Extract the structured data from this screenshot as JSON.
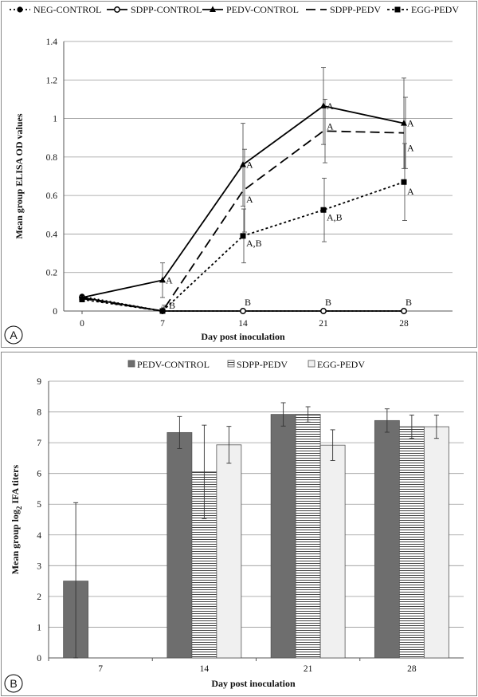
{
  "panels": [
    {
      "label": "A"
    },
    {
      "label": "B"
    }
  ],
  "colors": {
    "dark_bar": "#6e6e6e",
    "light_bar": "#f0f0f0",
    "grid": "#999999",
    "line": "#000000",
    "hatch": "#444444"
  },
  "chart_data": [
    {
      "type": "line",
      "panel": "A",
      "xlabel": "Day post inoculation",
      "ylabel": "Mean group ELISA OD values",
      "ylim": [
        0,
        1.4
      ],
      "yticks": [
        "0",
        "0.2",
        "0.4",
        "0.6",
        "0.8",
        "1",
        "1.2",
        "1.4"
      ],
      "x": [
        "0",
        "7",
        "14",
        "21",
        "28"
      ],
      "grid": true,
      "legend_position": "top",
      "series": [
        {
          "name": "NEG-CONTROL",
          "style": "dotted",
          "marker": "circle-filled",
          "values": [
            0.075,
            0.0,
            0.0,
            0.0,
            0.0
          ],
          "errors": [
            0,
            0,
            0,
            0,
            0
          ],
          "labels": [
            "",
            "B",
            "B",
            "B",
            "B"
          ]
        },
        {
          "name": "SDPP-CONTROL",
          "style": "solid",
          "marker": "circle-open",
          "values": [
            0.07,
            0.0,
            0.0,
            0.0,
            0.0
          ],
          "errors": [
            0,
            0,
            0,
            0,
            0
          ],
          "labels": [
            "",
            "",
            "",
            "",
            ""
          ]
        },
        {
          "name": "PEDV-CONTROL",
          "style": "solid",
          "marker": "triangle",
          "values": [
            0.07,
            0.16,
            0.76,
            1.065,
            0.975
          ],
          "errors": [
            0,
            0.09,
            0.215,
            0.2,
            0.235
          ],
          "labels": [
            "",
            "A",
            "A",
            "A",
            "A"
          ]
        },
        {
          "name": "SDPP-PEDV",
          "style": "dashed",
          "marker": "none",
          "values": [
            0.065,
            0.0,
            0.625,
            0.935,
            0.925
          ],
          "errors": [
            0,
            0.03,
            0.215,
            0.165,
            0.185
          ],
          "labels": [
            "",
            "",
            "A",
            "A",
            "A"
          ]
        },
        {
          "name": "EGG-PEDV",
          "style": "dotted-dense",
          "marker": "square",
          "values": [
            0.06,
            0.0,
            0.39,
            0.525,
            0.67
          ],
          "errors": [
            0,
            0.02,
            0.14,
            0.165,
            0.2
          ],
          "labels": [
            "",
            "",
            "A,B",
            "A,B",
            "A"
          ]
        }
      ]
    },
    {
      "type": "bar",
      "panel": "B",
      "xlabel": "Day post inoculation",
      "ylabel_main": "Mean group log",
      "ylabel_sub": "2",
      "ylabel_end": " IFA titers",
      "ylim": [
        0,
        9
      ],
      "yticks": [
        "0",
        "1",
        "2",
        "3",
        "4",
        "5",
        "6",
        "7",
        "8",
        "9"
      ],
      "categories": [
        "7",
        "14",
        "21",
        "28"
      ],
      "grid": true,
      "legend_position": "top",
      "series": [
        {
          "name": "PEDV-CONTROL",
          "fill": "dark",
          "values": [
            2.5,
            7.33,
            7.92,
            7.72
          ],
          "errors": [
            2.55,
            0.52,
            0.38,
            0.38
          ]
        },
        {
          "name": "SDPP-PEDV",
          "fill": "hatched",
          "values": [
            0,
            6.05,
            7.92,
            7.52
          ],
          "errors": [
            0,
            1.52,
            0.25,
            0.38
          ]
        },
        {
          "name": "EGG-PEDV",
          "fill": "light",
          "values": [
            0,
            6.93,
            6.92,
            7.52
          ],
          "errors": [
            0,
            0.6,
            0.5,
            0.38
          ]
        }
      ]
    }
  ]
}
